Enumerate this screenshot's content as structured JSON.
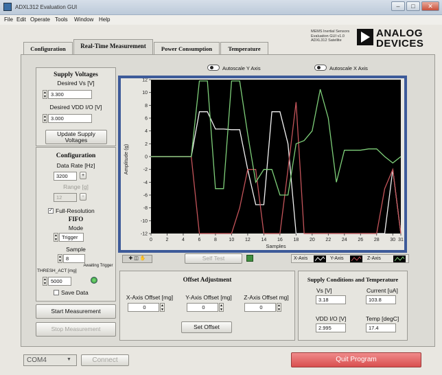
{
  "window": {
    "title": "ADXL312 Evaluation GUI"
  },
  "menu": [
    "File",
    "Edit",
    "Operate",
    "Tools",
    "Window",
    "Help"
  ],
  "tabs": [
    "Configuration",
    "Real-Time Measurement",
    "Power Consumption",
    "Temperature"
  ],
  "brand": {
    "info_lines": [
      "MEMS Inertial Sensors",
      "Evaluation GUI v1.0",
      "ADXL312 Satellite"
    ],
    "logo_line1": "ANALOG",
    "logo_line2": "DEVICES"
  },
  "supply": {
    "title": "Supply Voltages",
    "vs_label": "Desired Vs [V]",
    "vs_value": "3.300",
    "vdd_label": "Desired VDD I/O [V]",
    "vdd_value": "3.000",
    "update_button": "Update Supply Voltages"
  },
  "config": {
    "title": "Configuration",
    "rate_label": "Data Rate [Hz]",
    "rate_value": "3200",
    "range_label": "Range [g]",
    "range_value": "12",
    "full_res_label": "Full-Resolution",
    "fifo_label": "FIFO",
    "mode_label": "Mode",
    "mode_value": "Trigger",
    "sample_label": "Sample",
    "sample_value": "8",
    "thresh_label": "THRESH_ACT [mg]",
    "thresh_value": "5000",
    "awaiting_label": "Awaiting Trigger",
    "save_label": "Save Data"
  },
  "actions": {
    "start": "Start Measurement",
    "stop": "Stop Measurement"
  },
  "chart_controls": {
    "autoscale_y": "Autoscale Y Axis",
    "autoscale_x": "Autoscale X Axis",
    "self_test": "Self Test"
  },
  "legend": [
    "X-Axis",
    "Y-Axis",
    "Z-Axis"
  ],
  "offset": {
    "title": "Offset Adjustment",
    "x_label": "X-Axis Offset [mg]",
    "x_value": "0",
    "y_label": "Y-Axis Offset [mg]",
    "y_value": "0",
    "z_label": "Z-Axis Offset mg]",
    "z_value": "0",
    "set_button": "Set Offset"
  },
  "conditions": {
    "title": "Supply Conditions and Temperature",
    "vs_label": "Vs [V]",
    "vs_value": "3.18",
    "current_label": "Current [uA]",
    "current_value": "103.8",
    "vdd_label": "VDD I/O [V]",
    "vdd_value": "2.995",
    "temp_label": "Temp [degC]",
    "temp_value": "17.4"
  },
  "bottom": {
    "port_value": "COM4",
    "connect": "Connect",
    "quit": "Quit Program"
  },
  "colors": {
    "x_series": "#f4f4f4",
    "y_series": "#c4545a",
    "z_series": "#7fd07a",
    "chart_border": "#3d5a99",
    "plot_bg": "#000000",
    "quit_button": "#e86b6b",
    "led_on": "#3fbf3f"
  },
  "chart_data": {
    "type": "line",
    "xlabel": "Samples",
    "ylabel": "Amplitude (g)",
    "xlim": [
      0,
      31
    ],
    "ylim": [
      -12,
      12
    ],
    "xticks": [
      0,
      2,
      4,
      6,
      8,
      10,
      12,
      14,
      16,
      18,
      20,
      22,
      24,
      26,
      28,
      30,
      31
    ],
    "yticks": [
      12,
      10,
      8,
      6,
      4,
      2,
      0,
      -2,
      -4,
      -6,
      -8,
      -10,
      -12
    ],
    "x": [
      0,
      1,
      2,
      3,
      4,
      5,
      6,
      7,
      8,
      9,
      10,
      11,
      12,
      13,
      14,
      15,
      16,
      17,
      18,
      19,
      20,
      21,
      22,
      23,
      24,
      25,
      26,
      27,
      28,
      29,
      30,
      31
    ],
    "series": [
      {
        "name": "X-Axis",
        "values": [
          0,
          0,
          0,
          0,
          0,
          0,
          7,
          7,
          4.3,
          4.3,
          4.2,
          4.2,
          -2,
          -7.5,
          -7.5,
          7,
          7,
          2,
          -12,
          -12,
          -12,
          -12,
          -12,
          -12,
          -12,
          -12,
          -12,
          -12,
          -12,
          -12,
          -2,
          -12
        ]
      },
      {
        "name": "Y-Axis",
        "values": [
          0,
          0,
          0,
          0,
          0,
          0,
          -12,
          -12,
          -12,
          -12,
          -12,
          -8,
          -2,
          -2,
          -12,
          -12,
          -12,
          -2,
          8.5,
          -12,
          -12,
          -12,
          -12,
          -12,
          -12,
          -12,
          -12,
          -12,
          -12,
          -5,
          -2,
          -12
        ]
      },
      {
        "name": "Z-Axis",
        "values": [
          0,
          0,
          0,
          0,
          0,
          0,
          11.8,
          11.8,
          -5,
          -5,
          11.8,
          11.8,
          3.5,
          -4,
          -2,
          -2,
          -6,
          -6,
          2,
          2.5,
          4,
          10.5,
          6,
          -4,
          1,
          1,
          1,
          1.2,
          1.2,
          0,
          -1,
          0
        ]
      }
    ]
  }
}
